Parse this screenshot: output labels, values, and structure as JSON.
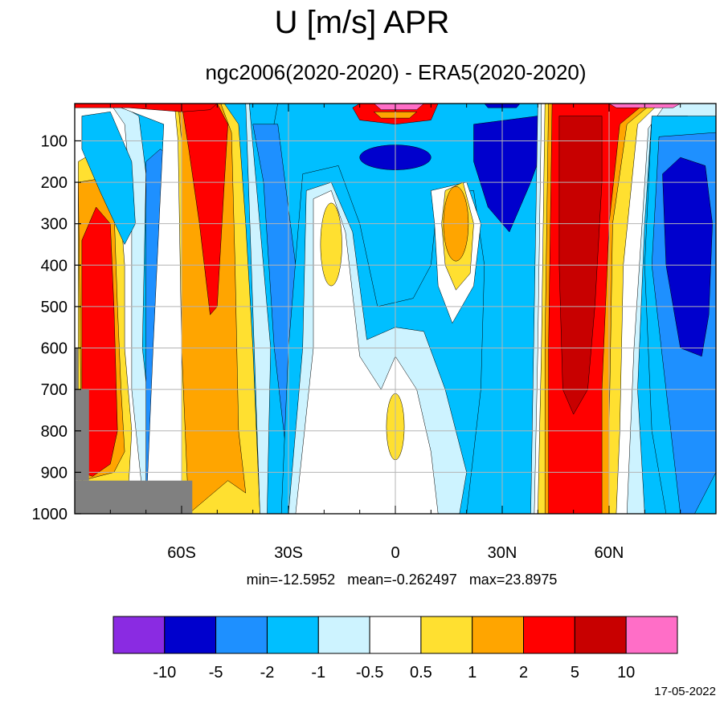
{
  "title": "U [m/s] APR",
  "subtitle": "ngc2006(2020-2020) - ERA5(2020-2020)",
  "stats": {
    "min_label": "min=-12.5952",
    "mean_label": "mean=-0.262497",
    "max_label": "max=23.8975"
  },
  "date": "17-05-2022",
  "chart_data": {
    "type": "heatmap",
    "title": "U [m/s] APR",
    "subtitle": "ngc2006(2020-2020) - ERA5(2020-2020)",
    "x_range": [
      -90,
      90
    ],
    "y_range": [
      1000,
      10
    ],
    "x_ticks": [
      {
        "value": -60,
        "label": "60S"
      },
      {
        "value": -30,
        "label": "30S"
      },
      {
        "value": 0,
        "label": "0"
      },
      {
        "value": 30,
        "label": "30N"
      },
      {
        "value": 60,
        "label": "60N"
      }
    ],
    "y_ticks": [
      {
        "value": 100,
        "label": "100"
      },
      {
        "value": 200,
        "label": "200"
      },
      {
        "value": 300,
        "label": "300"
      },
      {
        "value": 400,
        "label": "400"
      },
      {
        "value": 500,
        "label": "500"
      },
      {
        "value": 600,
        "label": "600"
      },
      {
        "value": 700,
        "label": "700"
      },
      {
        "value": 800,
        "label": "800"
      },
      {
        "value": 900,
        "label": "900"
      },
      {
        "value": 1000,
        "label": "1000"
      }
    ],
    "grid": true,
    "levels": [
      -10,
      -5,
      -2,
      -1,
      -0.5,
      0.5,
      1,
      2,
      5,
      10
    ],
    "level_labels": [
      "-10",
      "-5",
      "-2",
      "-1",
      "-0.5",
      "0.5",
      "1",
      "2",
      "5",
      "10"
    ],
    "colors": [
      "#8a2be2",
      "#0000cd",
      "#1e90ff",
      "#00bfff",
      "#cdf3ff",
      "#ffffff",
      "#ffe030",
      "#ffa500",
      "#ff0000",
      "#c80000",
      "#ff6ec7"
    ],
    "missing_color": "#808080",
    "stats": {
      "min": -12.5952,
      "mean": -0.262497,
      "max": 23.8975
    },
    "wind_difference_regions": [
      {
        "lat_center": -80,
        "p_top": 260,
        "p_bottom": 920,
        "value": 3
      },
      {
        "lat_center": -50,
        "p_top": 10,
        "p_bottom": 1000,
        "value": 3
      },
      {
        "lat_center": -65,
        "p_top": 80,
        "p_bottom": 1000,
        "value": -3
      },
      {
        "lat_center": -18,
        "p_top": 230,
        "p_bottom": 1000,
        "value": 0.2
      },
      {
        "lat_center": 17,
        "p_top": 220,
        "p_bottom": 400,
        "value": 2
      },
      {
        "lat_center": 0,
        "p_top": 130,
        "p_bottom": 160,
        "value": -6
      },
      {
        "lat_center": 30,
        "p_top": 130,
        "p_bottom": 320,
        "value": -6
      },
      {
        "lat_center": 48,
        "p_top": 10,
        "p_bottom": 1000,
        "value": 7
      },
      {
        "lat_center": 80,
        "p_top": 140,
        "p_bottom": 620,
        "value": -6
      },
      {
        "lat_center": 0,
        "p_top": 10,
        "p_bottom": 40,
        "value": 6
      }
    ]
  }
}
